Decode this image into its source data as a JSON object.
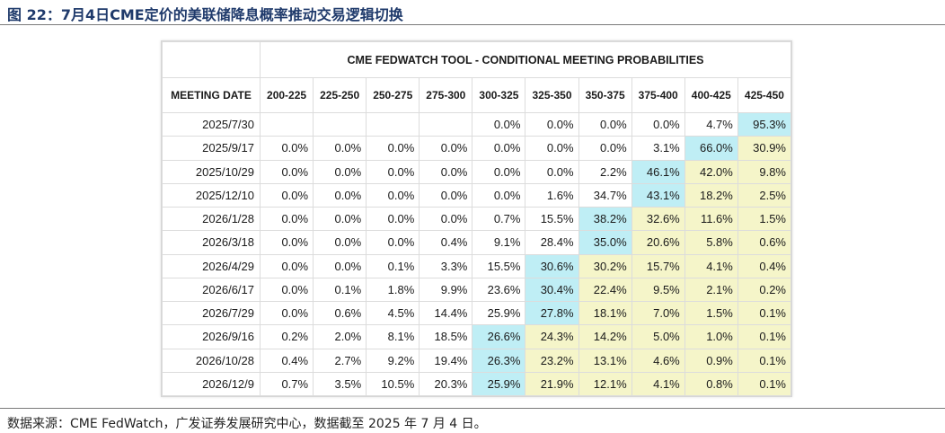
{
  "figure_title": "图 22：7月4日CME定价的美联储降息概率推动交易逻辑切换",
  "source_note": "数据来源：CME FedWatch，广发证券发展研究中心，数据截至 2025 年 7 月 4 日。",
  "chart_data": {
    "type": "table",
    "title": "CME FEDWATCH TOOL - CONDITIONAL MEETING PROBABILITIES",
    "row_header": "MEETING DATE",
    "columns": [
      "200-225",
      "225-250",
      "250-275",
      "275-300",
      "300-325",
      "325-350",
      "350-375",
      "375-400",
      "400-425",
      "425-450"
    ],
    "rows": [
      {
        "date": "2025/7/30",
        "values": [
          "",
          "",
          "",
          "",
          "0.0%",
          "0.0%",
          "0.0%",
          "0.0%",
          "4.7%",
          "95.3%"
        ]
      },
      {
        "date": "2025/9/17",
        "values": [
          "0.0%",
          "0.0%",
          "0.0%",
          "0.0%",
          "0.0%",
          "0.0%",
          "0.0%",
          "3.1%",
          "66.0%",
          "30.9%"
        ]
      },
      {
        "date": "2025/10/29",
        "values": [
          "0.0%",
          "0.0%",
          "0.0%",
          "0.0%",
          "0.0%",
          "0.0%",
          "2.2%",
          "46.1%",
          "42.0%",
          "9.8%"
        ]
      },
      {
        "date": "2025/12/10",
        "values": [
          "0.0%",
          "0.0%",
          "0.0%",
          "0.0%",
          "0.0%",
          "1.6%",
          "34.7%",
          "43.1%",
          "18.2%",
          "2.5%"
        ]
      },
      {
        "date": "2026/1/28",
        "values": [
          "0.0%",
          "0.0%",
          "0.0%",
          "0.0%",
          "0.7%",
          "15.5%",
          "38.2%",
          "32.6%",
          "11.6%",
          "1.5%"
        ]
      },
      {
        "date": "2026/3/18",
        "values": [
          "0.0%",
          "0.0%",
          "0.0%",
          "0.4%",
          "9.1%",
          "28.4%",
          "35.0%",
          "20.6%",
          "5.8%",
          "0.6%"
        ]
      },
      {
        "date": "2026/4/29",
        "values": [
          "0.0%",
          "0.0%",
          "0.1%",
          "3.3%",
          "15.5%",
          "30.6%",
          "30.2%",
          "15.7%",
          "4.1%",
          "0.4%"
        ]
      },
      {
        "date": "2026/6/17",
        "values": [
          "0.0%",
          "0.1%",
          "1.8%",
          "9.9%",
          "23.6%",
          "30.4%",
          "22.4%",
          "9.5%",
          "2.1%",
          "0.2%"
        ]
      },
      {
        "date": "2026/7/29",
        "values": [
          "0.0%",
          "0.6%",
          "4.5%",
          "14.4%",
          "25.9%",
          "27.8%",
          "18.1%",
          "7.0%",
          "1.5%",
          "0.1%"
        ]
      },
      {
        "date": "2026/9/16",
        "values": [
          "0.2%",
          "2.0%",
          "8.1%",
          "18.5%",
          "26.6%",
          "24.3%",
          "14.2%",
          "5.0%",
          "1.0%",
          "0.1%"
        ]
      },
      {
        "date": "2026/10/28",
        "values": [
          "0.4%",
          "2.7%",
          "9.2%",
          "19.4%",
          "26.3%",
          "23.2%",
          "13.1%",
          "4.6%",
          "0.9%",
          "0.1%"
        ]
      },
      {
        "date": "2026/12/9",
        "values": [
          "0.7%",
          "3.5%",
          "10.5%",
          "20.3%",
          "25.9%",
          "21.9%",
          "12.1%",
          "4.1%",
          "0.8%",
          "0.1%"
        ]
      }
    ],
    "highlight_colors": {
      "max": "#bfeef5",
      "upper_target": "#f5f5c9"
    }
  }
}
